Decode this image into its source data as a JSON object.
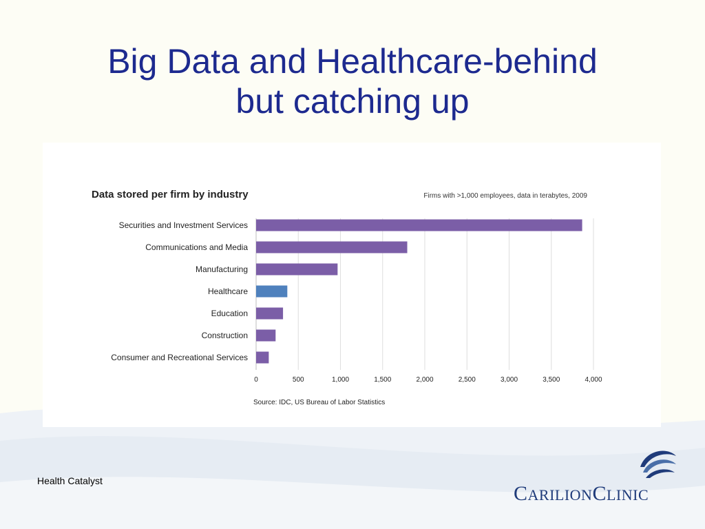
{
  "slide": {
    "title_line1": "Big Data and Healthcare-behind",
    "title_line2": "but catching up",
    "footer": "Health Catalyst"
  },
  "logo": {
    "wordmark_part1": "Carilion",
    "wordmark_part2": "Clinic",
    "mark_icon": "carilion-swirl-icon"
  },
  "colors": {
    "title": "#1d2a8f",
    "bar_default": "#7b5ea7",
    "bar_highlight": "#4f81bd",
    "logo": "#1f3b7a"
  },
  "chart_data": {
    "type": "bar",
    "orientation": "horizontal",
    "title": "Data stored per firm by industry",
    "subtitle": "Firms with >1,000 employees, data in terabytes, 2009",
    "source": "Source: IDC, US Bureau of Labor Statistics",
    "categories": [
      "Securities and Investment Services",
      "Communications and Media",
      "Manufacturing",
      "Healthcare",
      "Education",
      "Construction",
      "Consumer and Recreational Services"
    ],
    "values": [
      3866,
      1792,
      966,
      370,
      319,
      231,
      150
    ],
    "highlight": "Healthcare",
    "xlim": [
      0,
      4000
    ],
    "xticks": [
      0,
      500,
      1000,
      1500,
      2000,
      2500,
      3000,
      3500,
      4000
    ],
    "xtick_labels": [
      "0",
      "500",
      "1,000",
      "1,500",
      "2,000",
      "2,500",
      "3,000",
      "3,500",
      "4,000"
    ],
    "grid": "vertical"
  }
}
